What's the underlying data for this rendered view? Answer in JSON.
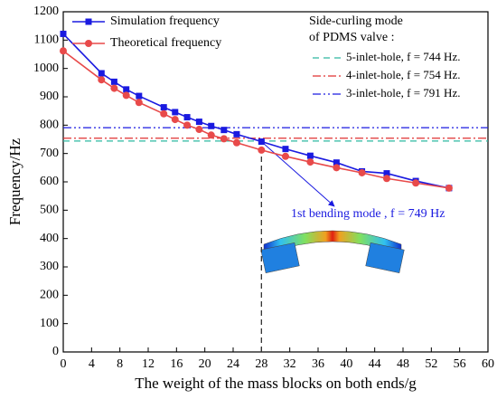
{
  "chart_data": {
    "type": "line",
    "x_label": "The weight of the mass blocks on both ends/g",
    "y_label": "Frequency/Hz",
    "x": [
      0,
      5.4,
      7.2,
      8.9,
      10.7,
      14.2,
      15.8,
      17.5,
      19.2,
      20.9,
      22.7,
      24.5,
      28,
      31.4,
      34.9,
      38.6,
      42.2,
      45.7,
      49.8,
      54.5
    ],
    "series": [
      {
        "name": "Simulation frequency",
        "color": "#1a1ae0",
        "marker": "square",
        "values": [
          1122,
          983,
          953,
          926,
          903,
          863,
          846,
          828,
          812,
          797,
          783,
          768,
          742,
          716,
          692,
          668,
          637,
          630,
          603,
          578
        ]
      },
      {
        "name": "Theoretical frequency",
        "color": "#e84a4a",
        "marker": "circle",
        "values": [
          1062,
          960,
          930,
          905,
          880,
          840,
          820,
          800,
          785,
          765,
          752,
          738,
          712,
          690,
          670,
          650,
          632,
          612,
          596,
          578
        ]
      }
    ],
    "reference_title": [
      "Side-curling mode",
      "of PDMS valve :"
    ],
    "reference_lines": [
      {
        "label": "5-inlet-hole, f = 744 Hz.",
        "value": 744,
        "color": "#2eb8a0",
        "dash": "7,5"
      },
      {
        "label": "4-inlet-hole, f = 754 Hz.",
        "value": 754,
        "color": "#e03030",
        "dash": "9,3,2,3"
      },
      {
        "label": "3-inlet-hole, f = 791 Hz.",
        "value": 791,
        "color": "#1a1ae0",
        "dash": "9,3,2,3,2,3"
      }
    ],
    "vline_x": 28,
    "annotation": "1st bending mode , f = 749 Hz",
    "xlim": [
      0,
      60
    ],
    "xticks": [
      0,
      4,
      8,
      12,
      16,
      20,
      24,
      28,
      32,
      36,
      40,
      44,
      48,
      52,
      56,
      60
    ],
    "ylim": [
      0,
      1200
    ],
    "yticks": [
      0,
      100,
      200,
      300,
      400,
      500,
      600,
      700,
      800,
      900,
      1000,
      1100,
      1200
    ]
  }
}
